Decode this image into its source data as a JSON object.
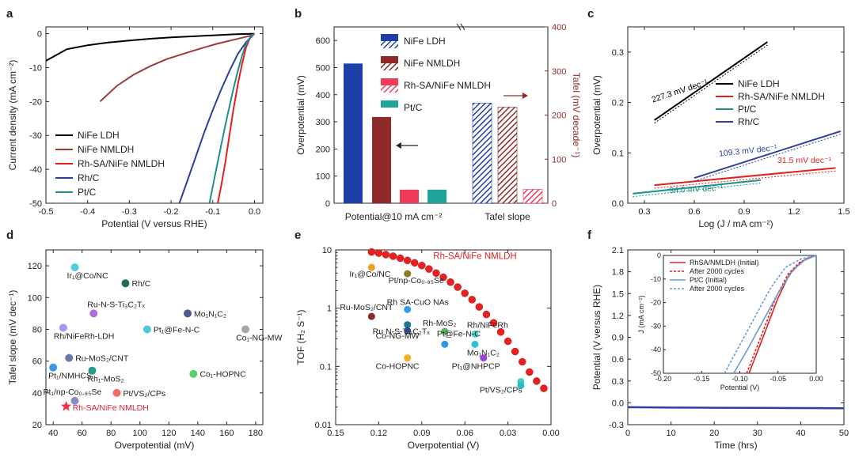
{
  "chart_data": [
    {
      "panel": "a",
      "type": "line",
      "xlabel": "Potential (V versus RHE)",
      "ylabel": "Current density (mA cm⁻²)",
      "xlim": [
        -0.5,
        0.02
      ],
      "ylim": [
        -50,
        2
      ],
      "xticks": [
        -0.5,
        -0.4,
        -0.3,
        -0.2,
        -0.1,
        0.0
      ],
      "yticks": [
        0,
        -10,
        -20,
        -30,
        -40,
        -50
      ],
      "legend_position": "bottom-left",
      "series": [
        {
          "name": "NiFe LDH",
          "color": "#000000",
          "x": [
            -0.5,
            -0.45,
            -0.4,
            -0.35,
            -0.3,
            -0.25,
            -0.2,
            -0.15,
            -0.1,
            -0.05,
            0.0
          ],
          "y": [
            -8,
            -4.6,
            -3.4,
            -2.6,
            -2.0,
            -1.5,
            -1.1,
            -0.8,
            -0.5,
            -0.2,
            0
          ]
        },
        {
          "name": "NiFe NMLDH",
          "color": "#9e3a3a",
          "x": [
            -0.37,
            -0.33,
            -0.29,
            -0.25,
            -0.21,
            -0.17,
            -0.13,
            -0.09,
            -0.05,
            -0.01,
            0.0
          ],
          "y": [
            -20,
            -15.4,
            -12.1,
            -9.6,
            -7.5,
            -5.9,
            -4.4,
            -3.0,
            -1.8,
            -0.6,
            0
          ]
        },
        {
          "name": "Rh-SA/NiFe NMLDH",
          "color": "#e02020",
          "x": [
            -0.088,
            -0.08,
            -0.07,
            -0.06,
            -0.05,
            -0.04,
            -0.03,
            -0.02,
            -0.01,
            0.0
          ],
          "y": [
            -50,
            -45,
            -38,
            -30,
            -22,
            -15,
            -9,
            -4,
            -1,
            0
          ]
        },
        {
          "name": "Rh/C",
          "color": "#2d3f9e",
          "x": [
            -0.18,
            -0.16,
            -0.14,
            -0.12,
            -0.1,
            -0.08,
            -0.06,
            -0.04,
            -0.02,
            0.0
          ],
          "y": [
            -50,
            -43,
            -36,
            -29,
            -22.5,
            -16.5,
            -11,
            -6,
            -2.5,
            0
          ]
        },
        {
          "name": "Pt/C",
          "color": "#1f8f8a",
          "x": [
            -0.108,
            -0.1,
            -0.09,
            -0.08,
            -0.07,
            -0.06,
            -0.05,
            -0.04,
            -0.03,
            -0.02,
            -0.01,
            0.0
          ],
          "y": [
            -50,
            -45,
            -39,
            -33,
            -27,
            -21.5,
            -16,
            -11,
            -6.5,
            -3,
            -1,
            0
          ]
        }
      ]
    },
    {
      "panel": "b",
      "type": "bar",
      "categories": [
        "Potential@10 mA cm⁻²",
        "Tafel slope"
      ],
      "ylabel": "Overpotential (mV)",
      "ylabel_right": "Tafel (mV decade⁻¹)",
      "ylim": [
        0,
        650
      ],
      "ylim_right": [
        0,
        400
      ],
      "yticks": [
        0,
        100,
        200,
        300,
        400,
        500,
        600
      ],
      "yticks_right": [
        0,
        100,
        200,
        300,
        400
      ],
      "legend_position": "top-center",
      "series": [
        {
          "name": "NiFe LDH",
          "color": "#1f3fa8",
          "overpotential": 515,
          "tafel": 227.3
        },
        {
          "name": "NiFe NMLDH",
          "color": "#8e2a2a",
          "overpotential": 318,
          "tafel": 218
        },
        {
          "name": "Rh-SA/NiFe NMLDH",
          "color": "#f03a5a",
          "overpotential": 50,
          "tafel": 31.5
        },
        {
          "name": "Pt/C",
          "color": "#20a39a",
          "overpotential": 50,
          "tafel": null
        }
      ]
    },
    {
      "panel": "c",
      "type": "line",
      "xlabel": "Log (J / mA cm⁻²)",
      "ylabel": "Overpotential (mV)",
      "xlim": [
        0.2,
        1.5
      ],
      "ylim": [
        0.0,
        0.35
      ],
      "xticks": [
        0.3,
        0.6,
        0.9,
        1.2,
        1.5
      ],
      "yticks": [
        0.0,
        0.1,
        0.2,
        0.3
      ],
      "legend_position": "right",
      "series": [
        {
          "name": "NiFe LDH",
          "color": "#000000",
          "x": [
            0.36,
            1.04
          ],
          "y": [
            0.165,
            0.32
          ],
          "slope_label": "227.3 mV dec⁻¹"
        },
        {
          "name": "Rh-SA/NiFe NMLDH",
          "color": "#e02020",
          "x": [
            0.36,
            1.45
          ],
          "y": [
            0.036,
            0.07
          ],
          "slope_label": "31.5 mV dec⁻¹"
        },
        {
          "name": "Pt/C",
          "color": "#1f8f8a",
          "x": [
            0.23,
            1.0
          ],
          "y": [
            0.019,
            0.046
          ],
          "slope_label": "34.0 mV dec⁻¹"
        },
        {
          "name": "Rh/C",
          "color": "#2d3f9e",
          "x": [
            0.6,
            1.48
          ],
          "y": [
            0.05,
            0.143
          ],
          "slope_label": "109.3 mV dec⁻¹"
        }
      ]
    },
    {
      "panel": "d",
      "type": "scatter",
      "xlabel": "Overpotential (mV)",
      "ylabel": "Tafel slope (mV dec⁻¹)",
      "xlim": [
        35,
        185
      ],
      "ylim": [
        20,
        130
      ],
      "xticks": [
        40,
        60,
        80,
        100,
        120,
        140,
        160,
        180
      ],
      "yticks": [
        20,
        40,
        60,
        80,
        100,
        120
      ],
      "points": [
        {
          "label": "Ir₁@Co/NC",
          "x": 55,
          "y": 119,
          "color": "#4dd0d8"
        },
        {
          "label": "Rh/C",
          "x": 90,
          "y": 109,
          "color": "#1a6e5a"
        },
        {
          "label": "Ru-N-S-Ti₃C₂Tₓ",
          "x": 68,
          "y": 90,
          "color": "#b06ad8"
        },
        {
          "label": "Mo₁N₁C₂",
          "x": 133,
          "y": 90,
          "color": "#4a5a90"
        },
        {
          "label": "Rh/NiFeRh-LDH",
          "x": 47,
          "y": 81,
          "color": "#a09ae8"
        },
        {
          "label": "Pt₁@Fe-N-C",
          "x": 105,
          "y": 80,
          "color": "#50c8e0"
        },
        {
          "label": "Co₁-NG-MW",
          "x": 173,
          "y": 80,
          "color": "#a8a8a8"
        },
        {
          "label": "Ru-MoS₂/CNT",
          "x": 51,
          "y": 62,
          "color": "#6a7aa8"
        },
        {
          "label": "Pt₁/NMHCS",
          "x": 40,
          "y": 56,
          "color": "#3a9ae8"
        },
        {
          "label": "Rh₁-MoS₂",
          "x": 67,
          "y": 54,
          "color": "#2a9a8a"
        },
        {
          "label": "Co₁-HOPNC",
          "x": 137,
          "y": 52,
          "color": "#5ad06a"
        },
        {
          "label": "Pt₁/np-Co₀.₈₅Se",
          "x": 55,
          "y": 35,
          "color": "#8a8ac8"
        },
        {
          "label": "Pt/VS₂/CPs",
          "x": 84,
          "y": 40,
          "color": "#f06a6a"
        },
        {
          "label": "Rh-SA/NiFe NMLDH",
          "x": 49,
          "y": 31.5,
          "color": "#f0304a",
          "marker": "star"
        }
      ]
    },
    {
      "panel": "e",
      "type": "scatter",
      "xlabel": "Overpotential (V)",
      "ylabel": "TOF (H₂ S⁻¹)",
      "xlim": [
        0.15,
        0.0
      ],
      "ylim": [
        0.01,
        10
      ],
      "log_y": true,
      "xticks": [
        0.15,
        0.12,
        0.09,
        0.06,
        0.03,
        0.0
      ],
      "yticks": [
        0.01,
        0.1,
        1,
        10
      ],
      "curve": {
        "name": "Rh-SA/NiFe NMLDH",
        "color": "#e82020",
        "x": [
          0.125,
          0.12,
          0.115,
          0.11,
          0.105,
          0.1,
          0.095,
          0.09,
          0.085,
          0.08,
          0.075,
          0.07,
          0.065,
          0.06,
          0.055,
          0.05,
          0.045,
          0.04,
          0.035,
          0.03,
          0.025,
          0.02,
          0.015,
          0.01,
          0.005
        ],
        "y": [
          9.2,
          8.8,
          8.3,
          7.8,
          7.2,
          6.6,
          6.0,
          5.4,
          4.7,
          4.0,
          3.4,
          2.8,
          2.3,
          1.8,
          1.4,
          1.05,
          0.78,
          0.56,
          0.39,
          0.27,
          0.18,
          0.12,
          0.08,
          0.056,
          0.042
        ]
      },
      "points": [
        {
          "label": "Ir₁@Co/NC",
          "x": 0.125,
          "y": 5.0,
          "color": "#f0a020"
        },
        {
          "label": "Pt/np-Co₀.₈₅Se",
          "x": 0.1,
          "y": 3.9,
          "color": "#8a7a20"
        },
        {
          "label": "Rh SA-CuO NAs",
          "x": 0.1,
          "y": 0.95,
          "color": "#3a9ae8"
        },
        {
          "label": "Ru-MoS₂/CNT",
          "x": 0.125,
          "y": 0.72,
          "color": "#8a2a2a"
        },
        {
          "label": "Ru N-S-Ti₃C₂Tₓ",
          "x": 0.1,
          "y": 0.52,
          "color": "#1a7a8a"
        },
        {
          "label": "Co-NG-MW",
          "x": 0.1,
          "y": 0.41,
          "color": "#2a4a8a"
        },
        {
          "label": "Rh-MoS₂",
          "x": 0.074,
          "y": 0.4,
          "color": "#5ab85a"
        },
        {
          "label": "Rh/NiFeRh",
          "x": 0.053,
          "y": 0.36,
          "color": "#4ad0d0"
        },
        {
          "label": "Pt@Fe-N-C",
          "x": 0.074,
          "y": 0.24,
          "color": "#2a9ae8"
        },
        {
          "label": "Mo₁N₁C₂",
          "x": 0.053,
          "y": 0.24,
          "color": "#30c0d0"
        },
        {
          "label": "Co-HOPNC",
          "x": 0.1,
          "y": 0.14,
          "color": "#f0b020"
        },
        {
          "label": "Pt₁@NHPCP",
          "x": 0.047,
          "y": 0.14,
          "color": "#a040d0"
        },
        {
          "label": "Pt/VS₂/CPs",
          "x": 0.021,
          "y": 0.055,
          "color": "#40d0c0"
        },
        {
          "label": "",
          "x": 0.021,
          "y": 0.047,
          "color": "#30b8c8"
        }
      ]
    },
    {
      "panel": "f",
      "type": "line",
      "xlabel": "Time (hrs)",
      "ylabel": "Potential (V versus RHE)",
      "xlim": [
        0,
        50
      ],
      "ylim": [
        -0.3,
        2.1
      ],
      "xticks": [
        0,
        10,
        20,
        30,
        40,
        50
      ],
      "yticks": [
        -0.3,
        0.0,
        0.3,
        0.6,
        0.9,
        1.2,
        1.5,
        1.8,
        2.1
      ],
      "series": [
        {
          "name": "",
          "color": "#2d3f9e",
          "x": [
            0,
            10,
            20,
            30,
            40,
            50
          ],
          "y": [
            -0.06,
            -0.065,
            -0.068,
            -0.07,
            -0.072,
            -0.075
          ]
        }
      ],
      "inset": {
        "type": "line",
        "xlabel": "Potential (V)",
        "ylabel": "J (mA cm⁻²)",
        "xlim": [
          -0.2,
          0.0
        ],
        "ylim": [
          -50,
          0
        ],
        "xticks": [
          -0.2,
          -0.15,
          -0.1,
          -0.05,
          0.0
        ],
        "yticks": [
          0,
          -10,
          -20,
          -30,
          -40,
          -50
        ],
        "series": [
          {
            "name": "RhSA/NMLDH (Initial)",
            "color": "#e02020",
            "dash": false,
            "x": [
              -0.088,
              -0.07,
              -0.05,
              -0.035,
              -0.02,
              -0.01,
              0.0
            ],
            "y": [
              -50,
              -35,
              -18,
              -8,
              -3,
              -1,
              0
            ]
          },
          {
            "name": "After 2000 cycles",
            "color": "#e02020",
            "dash": true,
            "x": [
              -0.091,
              -0.073,
              -0.053,
              -0.037,
              -0.022,
              -0.01,
              0.0
            ],
            "y": [
              -50,
              -35,
              -18,
              -8,
              -3,
              -1,
              0
            ]
          },
          {
            "name": "Pt/C (Initial)",
            "color": "#6a9ad8",
            "dash": false,
            "x": [
              -0.108,
              -0.09,
              -0.07,
              -0.05,
              -0.03,
              -0.015,
              0.0
            ],
            "y": [
              -50,
              -40,
              -28,
              -16,
              -6,
              -2,
              0
            ]
          },
          {
            "name": "After 2000 cycles",
            "color": "#6a9ad8",
            "dash": true,
            "x": [
              -0.12,
              -0.1,
              -0.08,
              -0.06,
              -0.04,
              -0.02,
              0.0
            ],
            "y": [
              -50,
              -38,
              -26,
              -14,
              -5,
              -1.5,
              0
            ]
          }
        ]
      }
    }
  ],
  "panels": {
    "a": {
      "label": "a"
    },
    "b": {
      "label": "b"
    },
    "c": {
      "label": "c"
    },
    "d": {
      "label": "d"
    },
    "e": {
      "label": "e"
    },
    "f": {
      "label": "f"
    }
  }
}
